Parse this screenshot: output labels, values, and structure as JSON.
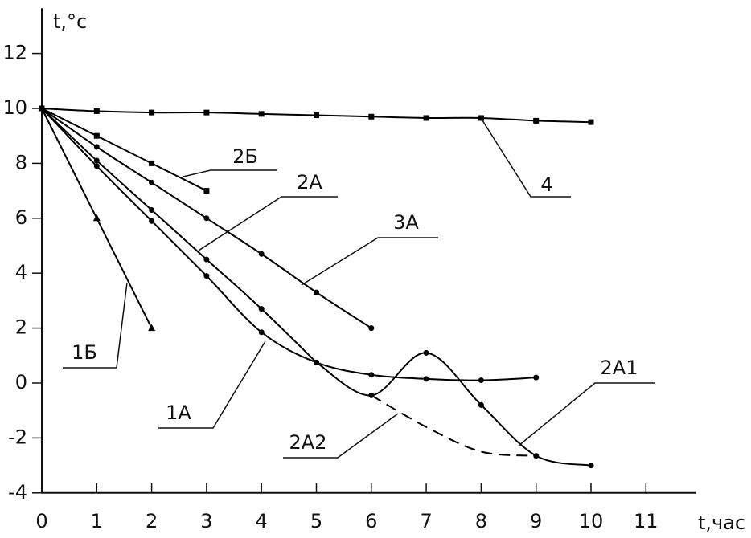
{
  "chart_data": {
    "type": "line",
    "y_label": "t,°c",
    "x_label": "t,час",
    "x": [
      0,
      1,
      2,
      3,
      4,
      5,
      6,
      7,
      8,
      9,
      10
    ],
    "xlim": [
      0,
      12
    ],
    "xticks": [
      0,
      1,
      2,
      3,
      4,
      5,
      6,
      7,
      8,
      9,
      10,
      11
    ],
    "ylim": [
      -4,
      13.5
    ],
    "yticks": [
      -4,
      -2,
      0,
      2,
      4,
      6,
      8,
      10,
      12
    ],
    "series": [
      {
        "name": "4",
        "color": "#000000",
        "marker": "square",
        "values": [
          10,
          9.9,
          9.85,
          9.85,
          9.8,
          9.75,
          9.7,
          9.65,
          9.65,
          9.55,
          9.5
        ]
      },
      {
        "name": "2Б",
        "color": "#000000",
        "marker": "square",
        "values": [
          10,
          9.0,
          8.0,
          7.0,
          null,
          null,
          null,
          null,
          null,
          null,
          null
        ]
      },
      {
        "name": "3А",
        "color": "#000000",
        "marker": "circle",
        "values": [
          10,
          8.6,
          7.3,
          6.0,
          4.7,
          3.3,
          2.0,
          null,
          null,
          null,
          null
        ]
      },
      {
        "name": "2А",
        "color": "#000000",
        "marker": "circle",
        "values": [
          10,
          8.1,
          6.3,
          4.5,
          2.7,
          0.75,
          null,
          null,
          null,
          null,
          null
        ]
      },
      {
        "name": "2А1",
        "color": "#000000",
        "marker": "circle",
        "values": [
          null,
          null,
          null,
          null,
          null,
          0.75,
          -0.45,
          1.1,
          -0.8,
          -2.65,
          -3.0
        ]
      },
      {
        "name": "2А2",
        "color": "#000000",
        "marker": "none",
        "dash": true,
        "values": [
          null,
          null,
          null,
          null,
          null,
          null,
          -0.45,
          -1.6,
          -2.5,
          -2.65,
          null
        ]
      },
      {
        "name": "1А",
        "color": "#000000",
        "marker": "circle",
        "values": [
          10,
          7.9,
          5.9,
          3.9,
          1.85,
          0.75,
          0.3,
          0.15,
          0.1,
          0.2,
          null
        ]
      },
      {
        "name": "1Б",
        "color": "#000000",
        "marker": "triangle",
        "values": [
          10,
          6.0,
          2.0,
          null,
          null,
          null,
          null,
          null,
          null,
          null,
          null
        ]
      }
    ]
  }
}
